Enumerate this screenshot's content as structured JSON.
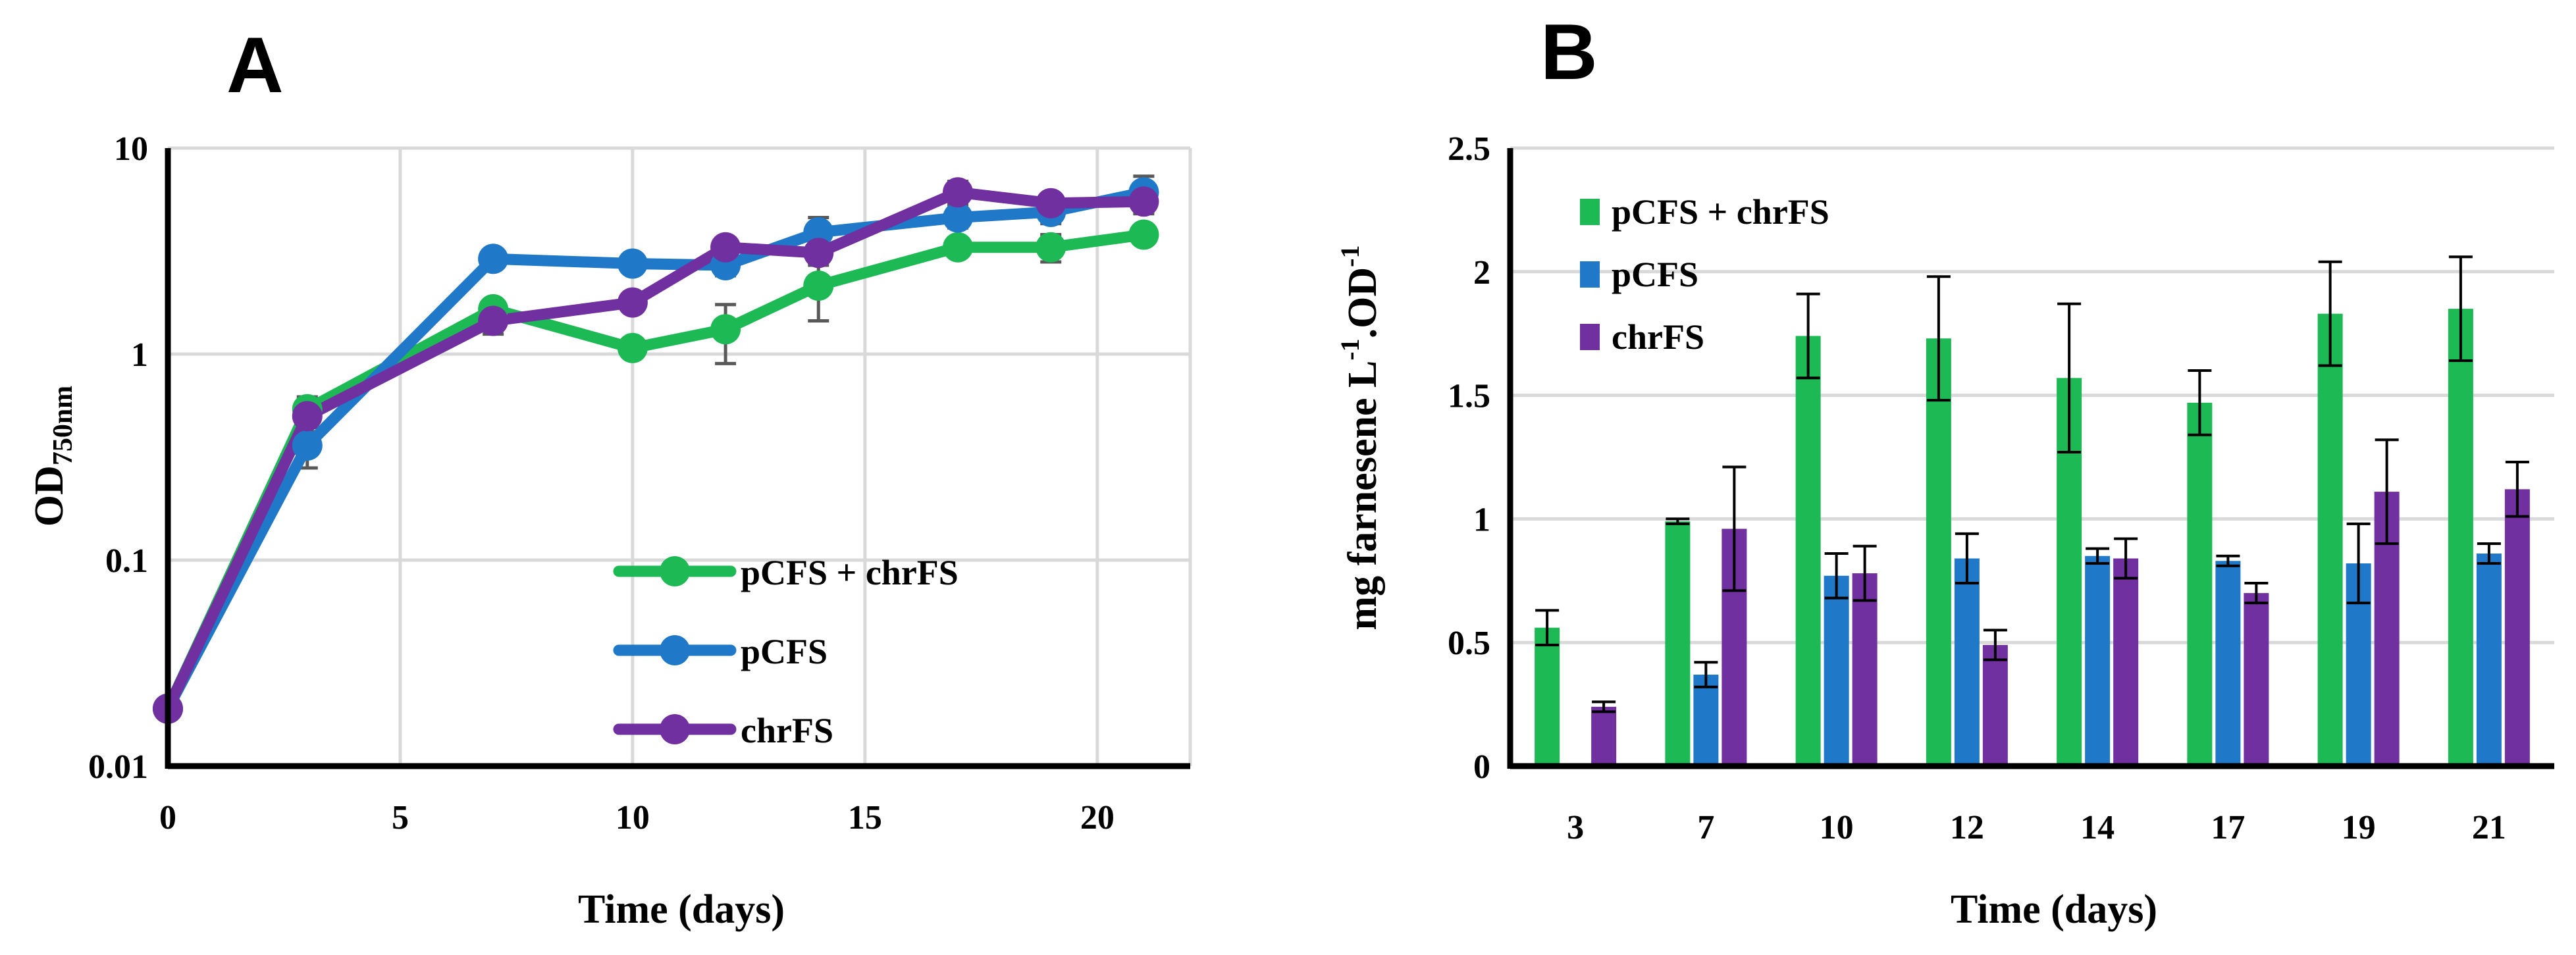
{
  "colors": {
    "green": "#1db954",
    "blue": "#1f78c8",
    "purple": "#7030a0",
    "error_a": "#595959",
    "error_b": "#000000"
  },
  "chart_data": [
    {
      "panel": "A",
      "type": "line",
      "yscale": "log",
      "ylim": [
        0.01,
        10
      ],
      "xlim": [
        0,
        22
      ],
      "xlabel": "Time (days)",
      "ylabel_main": "OD",
      "ylabel_sub": "750nm",
      "x_ticks": [
        "0",
        "5",
        "10",
        "15",
        "20"
      ],
      "y_ticks": [
        "0.01",
        "0.1",
        "1",
        "10"
      ],
      "legend_position": "bottom-right",
      "series": [
        {
          "name": "pCFS + chrFS",
          "color": "#1db954",
          "points": [
            [
              0,
              0.019,
              0
            ],
            [
              3,
              0.54,
              0.08
            ],
            [
              7,
              1.65,
              0.15
            ],
            [
              10,
              1.07,
              0.08
            ],
            [
              12,
              1.32,
              0.42
            ],
            [
              14,
              2.15,
              0.7
            ],
            [
              17,
              3.3,
              0.3
            ],
            [
              19,
              3.3,
              0.5
            ],
            [
              21,
              3.8,
              0.25
            ]
          ]
        },
        {
          "name": "pCFS",
          "color": "#1f78c8",
          "points": [
            [
              0,
              0.019,
              0
            ],
            [
              3,
              0.36,
              0.08
            ],
            [
              7,
              2.9,
              0.2
            ],
            [
              10,
              2.75,
              0.2
            ],
            [
              12,
              2.7,
              0.3
            ],
            [
              14,
              3.9,
              0.7
            ],
            [
              17,
              4.6,
              0.5
            ],
            [
              19,
              4.9,
              0.6
            ],
            [
              21,
              6.1,
              1.2
            ]
          ]
        },
        {
          "name": "chrFS",
          "color": "#7030a0",
          "points": [
            [
              0,
              0.019,
              0
            ],
            [
              3,
              0.5,
              0.08
            ],
            [
              7,
              1.45,
              0.2
            ],
            [
              10,
              1.78,
              0.15
            ],
            [
              12,
              3.3,
              0.3
            ],
            [
              14,
              3.1,
              0.4
            ],
            [
              17,
              6.1,
              0.8
            ],
            [
              19,
              5.4,
              0.5
            ],
            [
              21,
              5.5,
              0.7
            ]
          ]
        }
      ]
    },
    {
      "panel": "B",
      "type": "bar",
      "ylim": [
        0,
        2.5
      ],
      "xlabel": "Time (days)",
      "ylabel": "mg farnesene L-1.OD-1",
      "ylabel_parts": [
        "mg farnesene L",
        "-1",
        ".OD",
        "-1"
      ],
      "categories": [
        "3",
        "7",
        "10",
        "12",
        "14",
        "17",
        "19",
        "21"
      ],
      "y_ticks": [
        "0",
        "0.5",
        "1",
        "1.5",
        "2",
        "2.5"
      ],
      "legend_position": "top-left",
      "series": [
        {
          "name": "pCFS + chrFS",
          "color": "#1db954",
          "values": [
            0.56,
            0.99,
            1.74,
            1.73,
            1.57,
            1.47,
            1.83,
            1.85
          ],
          "errors": [
            0.07,
            0.01,
            0.17,
            0.25,
            0.3,
            0.13,
            0.21,
            0.21
          ]
        },
        {
          "name": "pCFS",
          "color": "#1f78c8",
          "values": [
            0,
            0.37,
            0.77,
            0.84,
            0.85,
            0.83,
            0.82,
            0.86
          ],
          "errors": [
            0,
            0.05,
            0.09,
            0.1,
            0.03,
            0.02,
            0.16,
            0.04
          ]
        },
        {
          "name": "chrFS",
          "color": "#7030a0",
          "values": [
            0.24,
            0.96,
            0.78,
            0.49,
            0.84,
            0.7,
            1.11,
            1.12
          ],
          "errors": [
            0.02,
            0.25,
            0.11,
            0.06,
            0.08,
            0.04,
            0.21,
            0.11
          ]
        }
      ]
    }
  ]
}
